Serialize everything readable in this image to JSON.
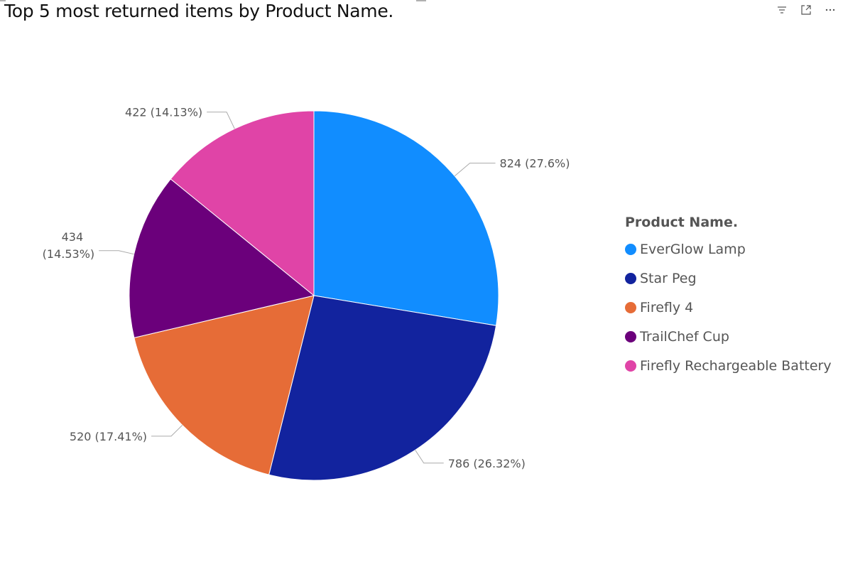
{
  "header": {
    "title": "Top 5 most returned items by Product Name."
  },
  "toolbar": {
    "icons": [
      "filter-icon",
      "focus-mode-icon",
      "more-options-icon"
    ]
  },
  "legend": {
    "title": "Product Name."
  },
  "chart_data": {
    "type": "pie",
    "title": "Top 5 most returned items by Product Name.",
    "legend_title": "Product Name.",
    "legend_placement": "right",
    "categories": [
      "EverGlow Lamp",
      "Star Peg",
      "Firefly 4",
      "TrailChef Cup",
      "Firefly Rechargeable Battery"
    ],
    "values": [
      824,
      786,
      520,
      434,
      422
    ],
    "percent_labels": [
      "27.6%",
      "26.32%",
      "17.41%",
      "14.53%",
      "14.13%"
    ],
    "data_labels": [
      "824 (27.6%)",
      "786 (26.32%)",
      "520 (17.41%)",
      "434 (14.53%)",
      "422 (14.13%)"
    ],
    "colors": [
      "#118DFF",
      "#12239E",
      "#E66C37",
      "#6B007B",
      "#E044A7"
    ]
  }
}
